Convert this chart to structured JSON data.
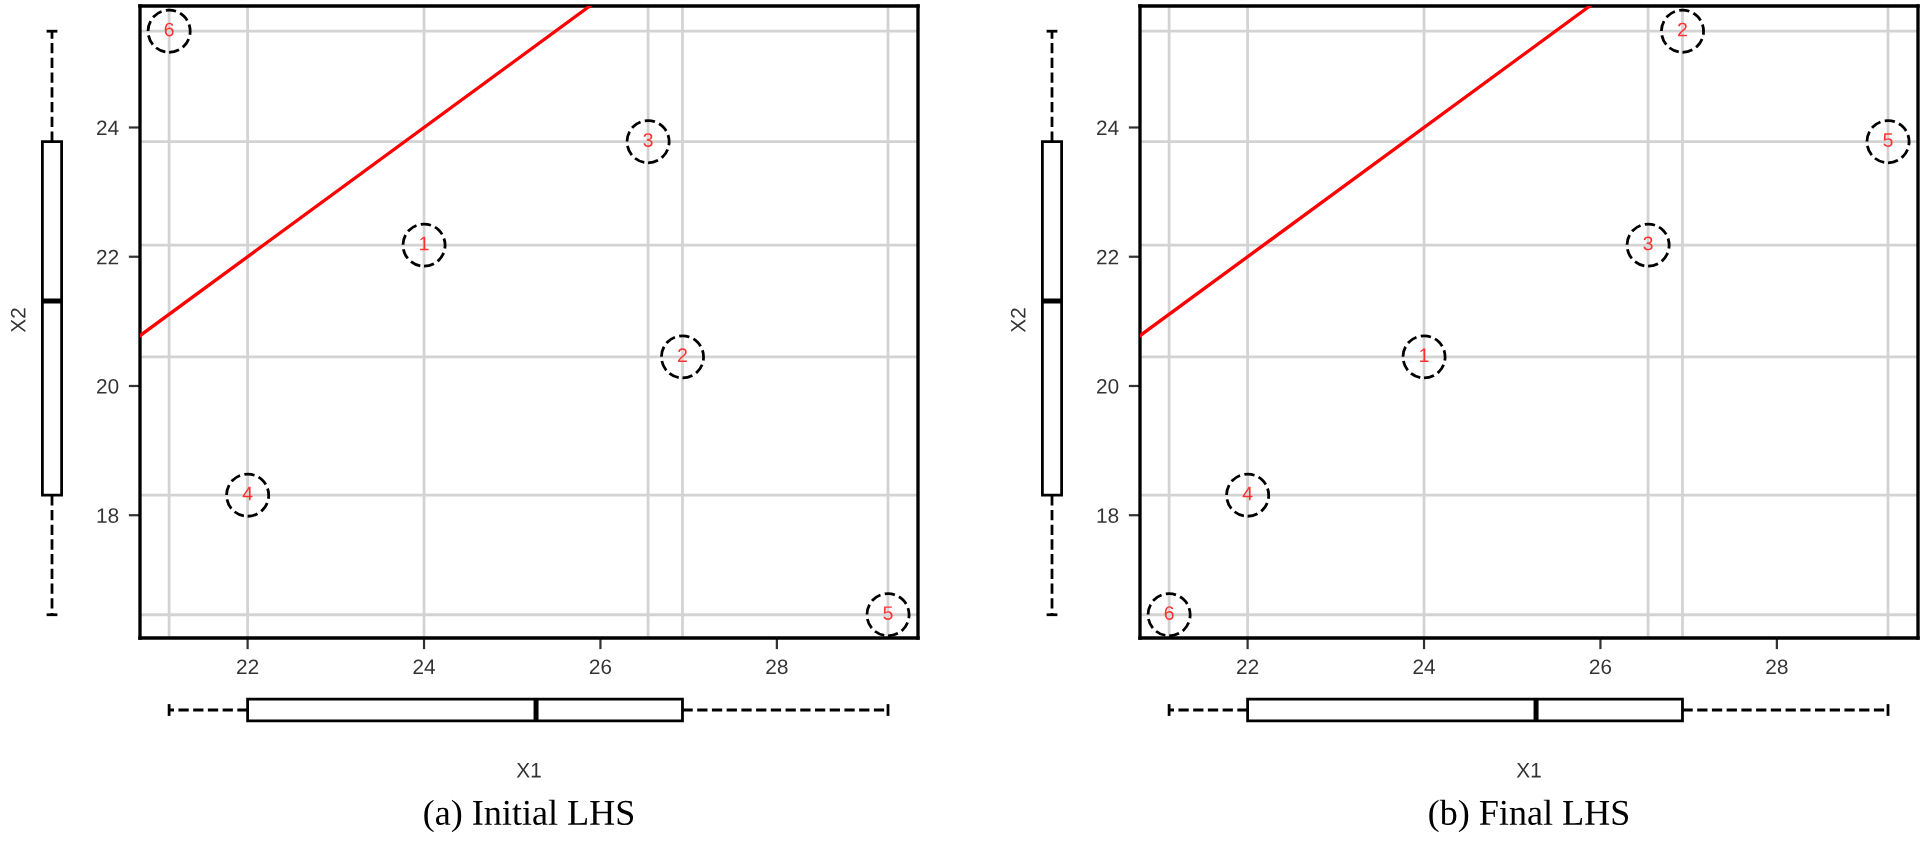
{
  "chart_data": [
    {
      "type": "scatter",
      "title": "(a) Initial LHS",
      "xlabel": "X1",
      "ylabel": "X2",
      "xlim": [
        20.78,
        29.6
      ],
      "ylim": [
        16.1,
        25.88
      ],
      "xticks": [
        22,
        24,
        26,
        28
      ],
      "yticks": [
        18,
        20,
        22,
        24
      ],
      "grid": false,
      "ref_lines": [
        {
          "axis": "x",
          "value": 24.0,
          "color": "#d3d3d3"
        },
        {
          "axis": "x",
          "value": 26.93,
          "color": "#d3d3d3"
        },
        {
          "axis": "x",
          "value": 26.54,
          "color": "#d3d3d3"
        },
        {
          "axis": "x",
          "value": 22.0,
          "color": "#d3d3d3"
        },
        {
          "axis": "x",
          "value": 29.26,
          "color": "#d3d3d3"
        },
        {
          "axis": "x",
          "value": 21.11,
          "color": "#d3d3d3"
        },
        {
          "axis": "y",
          "value": 22.18,
          "color": "#d3d3d3"
        },
        {
          "axis": "y",
          "value": 20.45,
          "color": "#d3d3d3"
        },
        {
          "axis": "y",
          "value": 23.78,
          "color": "#d3d3d3"
        },
        {
          "axis": "y",
          "value": 18.31,
          "color": "#d3d3d3"
        },
        {
          "axis": "y",
          "value": 16.46,
          "color": "#d3d3d3"
        },
        {
          "axis": "y",
          "value": 25.49,
          "color": "#d3d3d3"
        }
      ],
      "annotations": [
        {
          "text": "1",
          "x": 24.0,
          "y": 22.18
        },
        {
          "text": "2",
          "x": 26.93,
          "y": 20.45
        },
        {
          "text": "3",
          "x": 26.54,
          "y": 23.78
        },
        {
          "text": "4",
          "x": 22.0,
          "y": 18.31
        },
        {
          "text": "5",
          "x": 29.26,
          "y": 16.46
        },
        {
          "text": "6",
          "x": 21.11,
          "y": 25.49
        }
      ],
      "series": [
        {
          "type": "scatter",
          "color": "#000000",
          "marker": "circle",
          "x": [
            24.0,
            26.93,
            26.54,
            22.0,
            29.26,
            21.11
          ],
          "values": [
            22.18,
            20.45,
            23.78,
            18.31,
            16.46,
            25.49
          ]
        },
        {
          "type": "line",
          "color": "#ff0000",
          "x": [
            20.78,
            25.88
          ],
          "values": [
            20.78,
            25.88
          ]
        }
      ]
    },
    {
      "type": "scatter",
      "title": "(b) Final LHS",
      "xlabel": "X1",
      "ylabel": "X2",
      "xlim": [
        20.78,
        29.6
      ],
      "ylim": [
        16.1,
        25.88
      ],
      "xticks": [
        22,
        24,
        26,
        28
      ],
      "yticks": [
        18,
        20,
        22,
        24
      ],
      "grid": false,
      "ref_lines": [
        {
          "axis": "x",
          "value": 24.0,
          "color": "#d3d3d3"
        },
        {
          "axis": "x",
          "value": 26.93,
          "color": "#d3d3d3"
        },
        {
          "axis": "x",
          "value": 26.54,
          "color": "#d3d3d3"
        },
        {
          "axis": "x",
          "value": 22.0,
          "color": "#d3d3d3"
        },
        {
          "axis": "x",
          "value": 29.26,
          "color": "#d3d3d3"
        },
        {
          "axis": "x",
          "value": 21.11,
          "color": "#d3d3d3"
        },
        {
          "axis": "y",
          "value": 20.45,
          "color": "#d3d3d3"
        },
        {
          "axis": "y",
          "value": 25.49,
          "color": "#d3d3d3"
        },
        {
          "axis": "y",
          "value": 22.18,
          "color": "#d3d3d3"
        },
        {
          "axis": "y",
          "value": 18.31,
          "color": "#d3d3d3"
        },
        {
          "axis": "y",
          "value": 23.78,
          "color": "#d3d3d3"
        },
        {
          "axis": "y",
          "value": 16.46,
          "color": "#d3d3d3"
        }
      ],
      "annotations": [
        {
          "text": "1",
          "x": 24.0,
          "y": 20.45
        },
        {
          "text": "2",
          "x": 26.93,
          "y": 25.49
        },
        {
          "text": "3",
          "x": 26.54,
          "y": 22.18
        },
        {
          "text": "4",
          "x": 22.0,
          "y": 18.31
        },
        {
          "text": "5",
          "x": 29.26,
          "y": 23.78
        },
        {
          "text": "6",
          "x": 21.11,
          "y": 16.46
        }
      ],
      "series": [
        {
          "type": "scatter",
          "color": "#000000",
          "marker": "circle",
          "x": [
            24.0,
            26.93,
            26.54,
            22.0,
            29.26,
            21.11
          ],
          "values": [
            20.45,
            25.49,
            22.18,
            18.31,
            23.78,
            16.46
          ]
        },
        {
          "type": "line",
          "color": "#ff0000",
          "x": [
            20.78,
            25.88
          ],
          "values": [
            20.78,
            25.88
          ]
        }
      ]
    }
  ]
}
